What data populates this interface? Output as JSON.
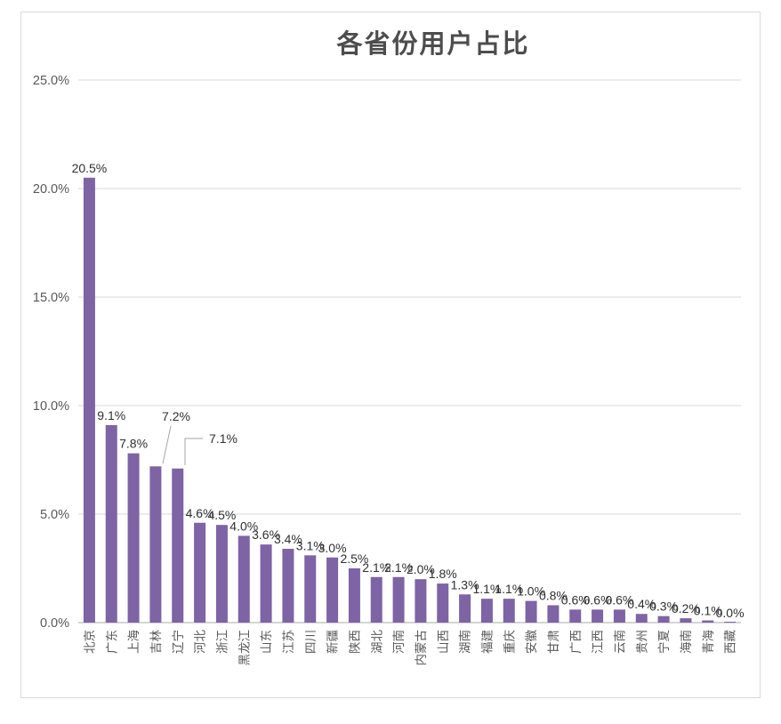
{
  "title": "各省份用户占比",
  "colors": {
    "bar": "#7e63a5",
    "gridline": "#d9d9d9",
    "axis_line": "#c6c6c6",
    "frame_border": "#d9d9d9",
    "title_text": "#4d4d4d",
    "tick_text": "#595959",
    "data_label_text": "#303030",
    "leader_line": "#a6a6a6"
  },
  "chart_data": {
    "type": "bar",
    "title": "各省份用户占比",
    "categories": [
      "北京",
      "广东",
      "上海",
      "吉林",
      "辽宁",
      "河北",
      "浙江",
      "黑龙江",
      "山东",
      "江苏",
      "四川",
      "新疆",
      "陕西",
      "湖北",
      "河南",
      "内蒙古",
      "山西",
      "湖南",
      "福建",
      "重庆",
      "安徽",
      "甘肃",
      "广西",
      "江西",
      "云南",
      "贵州",
      "宁夏",
      "海南",
      "青海",
      "西藏"
    ],
    "values": [
      20.5,
      9.1,
      7.8,
      7.2,
      7.1,
      4.6,
      4.5,
      4.0,
      3.6,
      3.4,
      3.1,
      3.0,
      2.5,
      2.1,
      2.1,
      2.0,
      1.8,
      1.3,
      1.1,
      1.1,
      1.0,
      0.8,
      0.6,
      0.6,
      0.6,
      0.4,
      0.3,
      0.2,
      0.1,
      0.0
    ],
    "data_labels": [
      "20.5%",
      "9.1%",
      "7.8%",
      "7.2%",
      "7.1%",
      "4.6%",
      "4.5%",
      "4.0%",
      "3.6%",
      "3.4%",
      "3.1%",
      "3.0%",
      "2.5%",
      "2.1%",
      "2.1%",
      "2.0%",
      "1.8%",
      "1.3%",
      "1.1%",
      "1.1%",
      "1.0%",
      "0.8%",
      "0.6%",
      "0.6%",
      "0.6%",
      "0.4%",
      "0.3%",
      "0.2%",
      "0.1%",
      "0.0%"
    ],
    "y_ticks": [
      "0.0%",
      "5.0%",
      "10.0%",
      "15.0%",
      "20.0%",
      "25.0%"
    ],
    "y_tick_values": [
      0,
      5,
      10,
      15,
      20,
      25
    ],
    "ylim": [
      0,
      25
    ],
    "xlabel": "",
    "ylabel": "",
    "grid": true,
    "legend": "none",
    "annotated_indices": [
      3,
      4
    ]
  }
}
